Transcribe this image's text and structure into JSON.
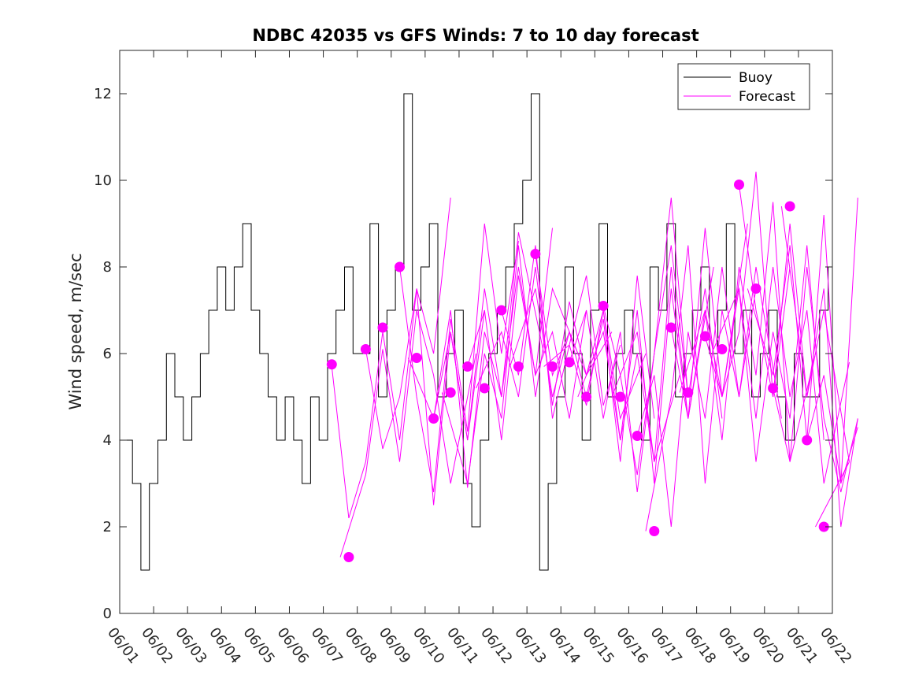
{
  "chart_data": {
    "type": "line",
    "title": "NDBC 42035 vs GFS Winds: 7 to 10 day forecast",
    "xlabel": "",
    "ylabel": "Wind speed, m/sec",
    "x_tick_labels": [
      "06/01",
      "06/02",
      "06/03",
      "06/04",
      "06/05",
      "06/06",
      "06/07",
      "06/08",
      "06/09",
      "06/10",
      "06/11",
      "06/12",
      "06/13",
      "06/14",
      "06/15",
      "06/16",
      "06/17",
      "06/18",
      "06/19",
      "06/20",
      "06/21",
      "06/22"
    ],
    "xlim": [
      "06/01",
      "06/22"
    ],
    "y_ticks": [
      0,
      2,
      4,
      6,
      8,
      10,
      12
    ],
    "ylim": [
      0,
      13
    ],
    "grid": false,
    "legend_position": "top-right",
    "colors": {
      "buoy": "#000000",
      "forecast": "#ff00ff"
    },
    "buoy_series": {
      "name": "Buoy",
      "x": [
        "06/01",
        "06/01",
        "06/01",
        "06/01",
        "06/02",
        "06/02",
        "06/02",
        "06/02",
        "06/03",
        "06/03",
        "06/03",
        "06/03",
        "06/04",
        "06/04",
        "06/04",
        "06/04",
        "06/05",
        "06/05",
        "06/05",
        "06/05",
        "06/06",
        "06/06",
        "06/06",
        "06/06",
        "06/07",
        "06/07",
        "06/07",
        "06/07",
        "06/08",
        "06/08",
        "06/08",
        "06/08",
        "06/09",
        "06/09",
        "06/09",
        "06/09",
        "06/10",
        "06/10",
        "06/10",
        "06/10",
        "06/11",
        "06/11",
        "06/11",
        "06/11",
        "06/12",
        "06/12",
        "06/12",
        "06/12",
        "06/13",
        "06/13",
        "06/13",
        "06/13",
        "06/14",
        "06/14",
        "06/14",
        "06/14",
        "06/15",
        "06/15",
        "06/15",
        "06/15",
        "06/16",
        "06/16",
        "06/16",
        "06/16",
        "06/17",
        "06/17",
        "06/17",
        "06/17",
        "06/18",
        "06/18",
        "06/18",
        "06/18",
        "06/19",
        "06/19",
        "06/19",
        "06/19",
        "06/20",
        "06/20",
        "06/20",
        "06/20",
        "06/21",
        "06/21",
        "06/21",
        "06/21"
      ],
      "values": [
        4,
        3,
        1,
        3,
        4,
        6,
        5,
        4,
        5,
        6,
        7,
        8,
        7,
        8,
        9,
        7,
        6,
        5,
        4,
        5,
        4,
        3,
        5,
        4,
        6,
        7,
        8,
        6,
        6,
        9,
        5,
        7,
        8,
        12,
        7,
        8,
        9,
        5,
        6,
        7,
        3,
        2,
        4,
        6,
        7,
        8,
        9,
        10,
        12,
        1,
        3,
        5,
        8,
        6,
        4,
        7,
        9,
        5,
        6,
        7,
        6,
        4,
        8,
        7,
        9,
        5,
        6,
        7,
        8,
        6,
        7,
        9,
        6,
        7,
        5,
        6,
        7,
        5,
        4,
        6,
        5,
        5,
        7,
        8
      ]
    },
    "forecast_series": [
      {
        "name": "Forecast",
        "x": [
          "06/07",
          "06/07",
          "06/08",
          "06/08",
          "06/09",
          "06/09",
          "06/10",
          "06/10"
        ],
        "values": [
          5.7,
          2.2,
          3.5,
          6.5,
          4.0,
          7.5,
          6.0,
          9.6
        ]
      },
      {
        "name": "Forecast",
        "x": [
          "06/07",
          "06/08",
          "06/08",
          "06/09",
          "06/09",
          "06/10",
          "06/10",
          "06/11"
        ],
        "values": [
          1.3,
          3.2,
          6.1,
          3.5,
          7.0,
          5.5,
          3.0,
          6.0
        ]
      },
      {
        "name": "Forecast",
        "x": [
          "06/08",
          "06/08",
          "06/09",
          "06/09",
          "06/10",
          "06/10",
          "06/11",
          "06/11"
        ],
        "values": [
          6.1,
          3.8,
          5.0,
          7.5,
          2.5,
          6.5,
          4.0,
          7.0
        ]
      },
      {
        "name": "Forecast",
        "x": [
          "06/09",
          "06/09",
          "06/10",
          "06/10",
          "06/11",
          "06/11",
          "06/12",
          "06/12"
        ],
        "values": [
          8.0,
          5.0,
          2.8,
          6.8,
          4.2,
          9.0,
          6.0,
          8.6
        ]
      },
      {
        "name": "Forecast",
        "x": [
          "06/09",
          "06/10",
          "06/10",
          "06/11",
          "06/11",
          "06/12",
          "06/12",
          "06/13"
        ],
        "values": [
          5.9,
          4.5,
          7.0,
          2.9,
          6.5,
          5.0,
          8.8,
          6.0
        ]
      },
      {
        "name": "Forecast",
        "x": [
          "06/10",
          "06/10",
          "06/11",
          "06/11",
          "06/12",
          "06/12",
          "06/13",
          "06/13"
        ],
        "values": [
          4.5,
          6.5,
          4.0,
          7.5,
          5.0,
          8.0,
          5.5,
          8.9
        ]
      },
      {
        "name": "Forecast",
        "x": [
          "06/10",
          "06/11",
          "06/11",
          "06/12",
          "06/12",
          "06/13",
          "06/13",
          "06/14"
        ],
        "values": [
          5.1,
          3.0,
          6.0,
          4.5,
          8.5,
          5.0,
          7.5,
          6.0
        ]
      },
      {
        "name": "Forecast",
        "x": [
          "06/11",
          "06/11",
          "06/12",
          "06/12",
          "06/13",
          "06/13",
          "06/14",
          "06/14"
        ],
        "values": [
          5.7,
          7.0,
          4.0,
          7.8,
          5.5,
          6.5,
          4.5,
          7.0
        ]
      },
      {
        "name": "Forecast",
        "x": [
          "06/11",
          "06/12",
          "06/12",
          "06/13",
          "06/13",
          "06/14",
          "06/14",
          "06/15"
        ],
        "values": [
          5.2,
          6.5,
          5.0,
          8.0,
          4.8,
          7.2,
          5.5,
          6.5
        ]
      },
      {
        "name": "Forecast",
        "x": [
          "06/12",
          "06/12",
          "06/13",
          "06/13",
          "06/14",
          "06/14",
          "06/15",
          "06/15"
        ],
        "values": [
          7.0,
          5.5,
          8.5,
          4.5,
          6.2,
          7.8,
          4.8,
          6.2
        ]
      },
      {
        "name": "Forecast",
        "x": [
          "06/12",
          "06/13",
          "06/13",
          "06/14",
          "06/14",
          "06/15",
          "06/15",
          "06/16"
        ],
        "values": [
          5.7,
          7.5,
          5.0,
          6.5,
          5.5,
          7.0,
          4.5,
          6.0
        ]
      },
      {
        "name": "Forecast",
        "x": [
          "06/13",
          "06/13",
          "06/14",
          "06/14",
          "06/15",
          "06/15",
          "06/16",
          "06/16"
        ],
        "values": [
          8.3,
          5.5,
          6.5,
          5.0,
          6.8,
          3.5,
          7.8,
          4.5
        ]
      },
      {
        "name": "Forecast",
        "x": [
          "06/13",
          "06/14",
          "06/14",
          "06/15",
          "06/15",
          "06/16",
          "06/16",
          "06/17"
        ],
        "values": [
          5.7,
          6.2,
          4.8,
          7.0,
          4.0,
          6.0,
          3.5,
          5.5
        ]
      },
      {
        "name": "Forecast",
        "x": [
          "06/14",
          "06/14",
          "06/15",
          "06/15",
          "06/16",
          "06/16",
          "06/17",
          "06/17"
        ],
        "values": [
          5.8,
          7.0,
          4.5,
          6.5,
          2.8,
          6.0,
          8.5,
          5.0
        ]
      },
      {
        "name": "Forecast",
        "x": [
          "06/14",
          "06/15",
          "06/15",
          "06/16",
          "06/16",
          "06/17",
          "06/17",
          "06/18"
        ],
        "values": [
          5.0,
          6.5,
          4.0,
          7.0,
          3.0,
          7.5,
          4.5,
          8.0
        ]
      },
      {
        "name": "Forecast",
        "x": [
          "06/15",
          "06/15",
          "06/16",
          "06/16",
          "06/17",
          "06/17",
          "06/18",
          "06/18"
        ],
        "values": [
          7.1,
          5.5,
          3.2,
          6.0,
          9.6,
          5.0,
          7.5,
          4.5
        ]
      },
      {
        "name": "Forecast",
        "x": [
          "06/15",
          "06/16",
          "06/16",
          "06/17",
          "06/17",
          "06/18",
          "06/18",
          "06/19"
        ],
        "values": [
          5.0,
          6.5,
          3.5,
          8.0,
          4.5,
          7.0,
          5.0,
          9.0
        ]
      },
      {
        "name": "Forecast",
        "x": [
          "06/16",
          "06/16",
          "06/17",
          "06/17",
          "06/18",
          "06/18",
          "06/19",
          "06/19"
        ],
        "values": [
          4.1,
          5.5,
          2.0,
          6.5,
          4.5,
          8.0,
          5.0,
          7.5
        ]
      },
      {
        "name": "Forecast",
        "x": [
          "06/16",
          "06/17",
          "06/17",
          "06/18",
          "06/18",
          "06/19",
          "06/19",
          "06/20"
        ],
        "values": [
          1.9,
          5.0,
          8.5,
          3.0,
          7.0,
          5.0,
          8.0,
          4.5
        ]
      },
      {
        "name": "Forecast",
        "x": [
          "06/17",
          "06/17",
          "06/18",
          "06/18",
          "06/19",
          "06/19",
          "06/20",
          "06/20"
        ],
        "values": [
          6.6,
          4.5,
          8.9,
          5.0,
          6.5,
          10.2,
          5.0,
          8.0
        ]
      },
      {
        "name": "Forecast",
        "x": [
          "06/17",
          "06/18",
          "06/18",
          "06/19",
          "06/19",
          "06/20",
          "06/20",
          "06/21"
        ],
        "values": [
          5.1,
          7.0,
          4.0,
          8.0,
          5.5,
          9.5,
          3.5,
          6.0
        ]
      },
      {
        "name": "Forecast",
        "x": [
          "06/18",
          "06/18",
          "06/19",
          "06/19",
          "06/20",
          "06/20",
          "06/21",
          "06/21"
        ],
        "values": [
          6.4,
          5.0,
          7.5,
          3.5,
          6.5,
          4.5,
          8.5,
          4.0
        ]
      },
      {
        "name": "Forecast",
        "x": [
          "06/18",
          "06/19",
          "06/19",
          "06/20",
          "06/20",
          "06/21",
          "06/21",
          "06/22"
        ],
        "values": [
          6.1,
          7.5,
          4.5,
          8.0,
          5.0,
          7.0,
          3.0,
          5.8
        ]
      },
      {
        "name": "Forecast",
        "x": [
          "06/19",
          "06/19",
          "06/20",
          "06/20",
          "06/21",
          "06/21",
          "06/22",
          "06/22"
        ],
        "values": [
          9.9,
          7.0,
          5.0,
          9.0,
          5.0,
          7.5,
          2.0,
          4.5
        ]
      },
      {
        "name": "Forecast",
        "x": [
          "06/19",
          "06/20",
          "06/20",
          "06/21",
          "06/21",
          "06/22",
          "06/22"
        ],
        "values": [
          7.5,
          5.5,
          8.5,
          4.0,
          9.2,
          3.0,
          9.6
        ]
      },
      {
        "name": "Forecast",
        "x": [
          "06/20",
          "06/20",
          "06/21",
          "06/21",
          "06/22",
          "06/22"
        ],
        "values": [
          5.2,
          3.5,
          8.0,
          4.5,
          2.8,
          4.5
        ]
      },
      {
        "name": "Forecast",
        "x": [
          "06/20",
          "06/21",
          "06/21",
          "06/22"
        ],
        "values": [
          9.4,
          5.0,
          7.0,
          3.5
        ]
      },
      {
        "name": "Forecast",
        "x": [
          "06/21",
          "06/21",
          "06/22",
          "06/22"
        ],
        "values": [
          4.0,
          5.5,
          3.0,
          4.3
        ]
      },
      {
        "name": "Forecast",
        "x": [
          "06/21",
          "06/22"
        ],
        "values": [
          2.0,
          3.5
        ]
      }
    ],
    "forecast_markers": {
      "name": "Forecast",
      "x": [
        "06/07",
        "06/07",
        "06/08",
        "06/08",
        "06/09",
        "06/09",
        "06/10",
        "06/10",
        "06/11",
        "06/11",
        "06/12",
        "06/12",
        "06/13",
        "06/13",
        "06/14",
        "06/14",
        "06/15",
        "06/15",
        "06/16",
        "06/16",
        "06/17",
        "06/17",
        "06/18",
        "06/18",
        "06/19",
        "06/19",
        "06/20",
        "06/20",
        "06/21",
        "06/21"
      ],
      "values": [
        5.75,
        1.3,
        6.1,
        6.6,
        8.0,
        5.9,
        4.5,
        5.1,
        5.7,
        5.2,
        7.0,
        5.7,
        8.3,
        5.7,
        5.8,
        5.0,
        7.1,
        5.0,
        4.1,
        1.9,
        6.6,
        5.1,
        6.4,
        6.1,
        9.9,
        7.5,
        5.2,
        9.4,
        4.0,
        2.0
      ]
    },
    "legend": [
      {
        "label": "Buoy",
        "color": "#000000"
      },
      {
        "label": "Forecast",
        "color": "#ff00ff"
      }
    ]
  }
}
